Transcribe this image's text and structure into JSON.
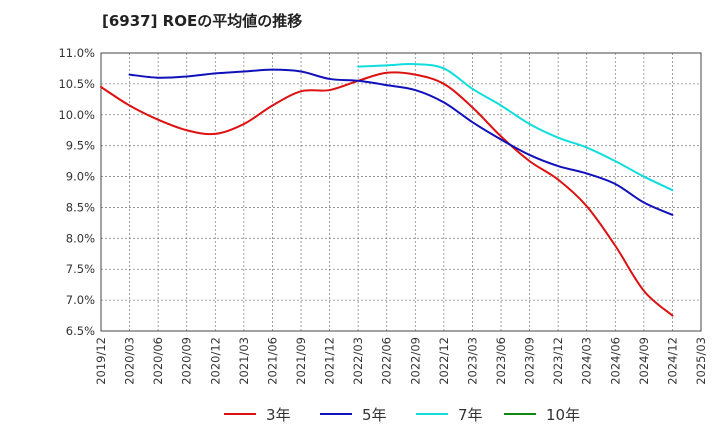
{
  "chart_data": {
    "type": "line",
    "title": "[6937]  ROEの平均値の推移",
    "xlabel": "",
    "ylabel": "",
    "ylim": [
      6.5,
      11.0
    ],
    "yticks": [
      "6.5%",
      "7.0%",
      "7.5%",
      "8.0%",
      "8.5%",
      "9.0%",
      "9.5%",
      "10.0%",
      "10.5%",
      "11.0%"
    ],
    "x_tick_labels": [
      "2019/12",
      "2020/03",
      "2020/06",
      "2020/09",
      "2020/12",
      "2021/03",
      "2021/06",
      "2021/09",
      "2021/12",
      "2022/03",
      "2022/06",
      "2022/09",
      "2022/12",
      "2023/03",
      "2023/06",
      "2023/09",
      "2023/12",
      "2024/03",
      "2024/06",
      "2024/09",
      "2024/12",
      "2025/03"
    ],
    "grid": true,
    "legend_position": "bottom",
    "series": [
      {
        "name": "3年",
        "color": "#dd1111",
        "x": [
          "2019/12",
          "2020/03",
          "2020/06",
          "2020/09",
          "2020/12",
          "2021/03",
          "2021/06",
          "2021/09",
          "2021/12",
          "2022/03",
          "2022/06",
          "2022/09",
          "2022/12",
          "2023/03",
          "2023/06",
          "2023/09",
          "2023/12",
          "2024/03",
          "2024/06",
          "2024/09",
          "2024/12"
        ],
        "values": [
          10.45,
          10.15,
          9.92,
          9.75,
          9.69,
          9.85,
          10.15,
          10.38,
          10.4,
          10.55,
          10.68,
          10.65,
          10.5,
          10.12,
          9.65,
          9.25,
          8.95,
          8.52,
          7.88,
          7.15,
          6.75
        ]
      },
      {
        "name": "5年",
        "color": "#1111bb",
        "x": [
          "2020/03",
          "2020/06",
          "2020/09",
          "2020/12",
          "2021/03",
          "2021/06",
          "2021/09",
          "2021/12",
          "2022/03",
          "2022/06",
          "2022/09",
          "2022/12",
          "2023/03",
          "2023/06",
          "2023/09",
          "2023/12",
          "2024/03",
          "2024/06",
          "2024/09",
          "2024/12"
        ],
        "values": [
          10.65,
          10.6,
          10.62,
          10.67,
          10.7,
          10.73,
          10.7,
          10.58,
          10.55,
          10.48,
          10.4,
          10.2,
          9.88,
          9.6,
          9.35,
          9.17,
          9.05,
          8.88,
          8.58,
          8.38
        ]
      },
      {
        "name": "7年",
        "color": "#11dddd",
        "x": [
          "2022/03",
          "2022/06",
          "2022/09",
          "2022/12",
          "2023/03",
          "2023/06",
          "2023/09",
          "2023/12",
          "2024/03",
          "2024/06",
          "2024/09",
          "2024/12"
        ],
        "values": [
          10.78,
          10.8,
          10.82,
          10.75,
          10.42,
          10.15,
          9.85,
          9.63,
          9.47,
          9.25,
          9.0,
          8.78
        ]
      },
      {
        "name": "10年",
        "color": "#118811",
        "x": [],
        "values": []
      }
    ]
  }
}
